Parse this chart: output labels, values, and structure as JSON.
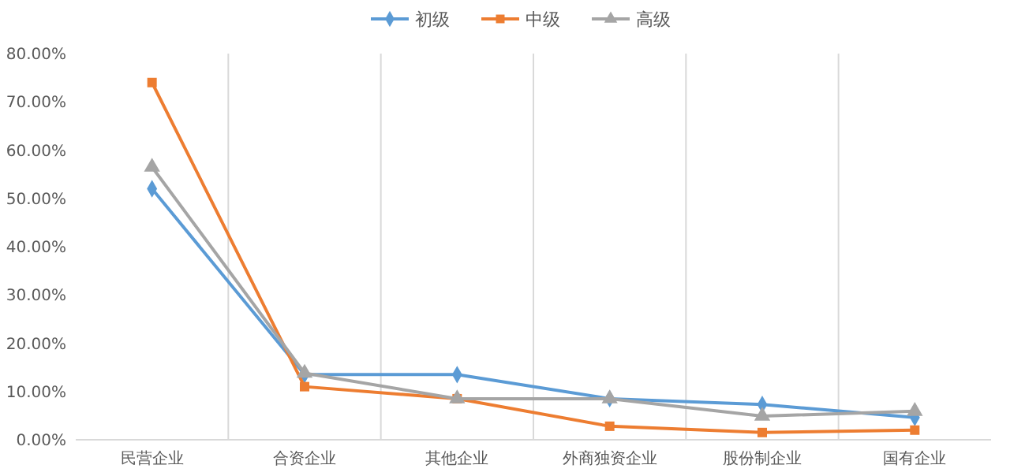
{
  "chart_data": {
    "type": "line",
    "categories": [
      "民营企业",
      "合资企业",
      "其他企业",
      "外商独资企业",
      "股份制企业",
      "国有企业"
    ],
    "series": [
      {
        "name": "初级",
        "color": "#5b9bd5",
        "marker": "diamond",
        "values": [
          52,
          13.5,
          13.5,
          8.5,
          7.3,
          4.6
        ]
      },
      {
        "name": "中级",
        "color": "#ed7d31",
        "marker": "square",
        "values": [
          74,
          11,
          8.5,
          2.8,
          1.5,
          2
        ]
      },
      {
        "name": "高级",
        "color": "#a5a5a5",
        "marker": "triangle",
        "values": [
          56.5,
          13.8,
          8.5,
          8.5,
          4.9,
          5.9
        ]
      }
    ],
    "ylim": [
      0,
      80
    ],
    "yticks": [
      {
        "value": 0,
        "label": "0.00%"
      },
      {
        "value": 10,
        "label": "10.00%"
      },
      {
        "value": 20,
        "label": "20.00%"
      },
      {
        "value": 30,
        "label": "30.00%"
      },
      {
        "value": 40,
        "label": "40.00%"
      },
      {
        "value": 50,
        "label": "50.00%"
      },
      {
        "value": 60,
        "label": "60.00%"
      },
      {
        "value": 70,
        "label": "70.00%"
      },
      {
        "value": 80,
        "label": "80.00%"
      }
    ],
    "grid": "x",
    "legend": "top",
    "line_style": "solid"
  }
}
